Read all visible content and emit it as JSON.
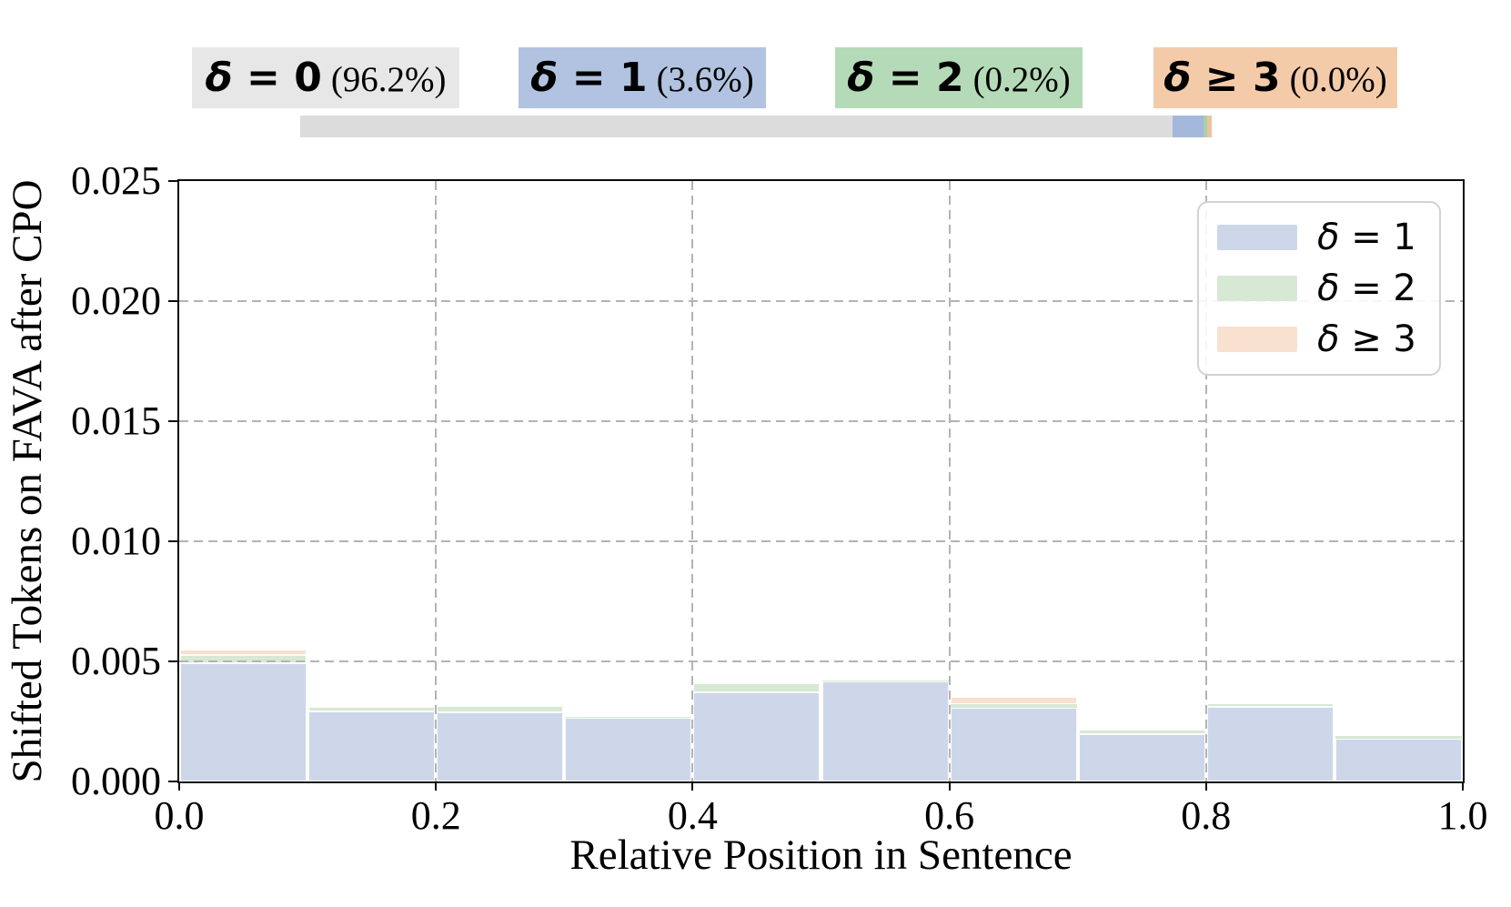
{
  "header": {
    "categories": [
      {
        "label_math": "δ = 0",
        "label_pct": "(96.2%)",
        "bg": "#e7e7e7"
      },
      {
        "label_math": "δ = 1",
        "label_pct": "(3.6%)",
        "bg": "#b2c3e1"
      },
      {
        "label_math": "δ = 2",
        "label_pct": "(0.2%)",
        "bg": "#b5dab7"
      },
      {
        "label_math": "δ ≥ 3",
        "label_pct": "(0.0%)",
        "bg": "#f4cba9"
      }
    ],
    "share_bar": {
      "segments": [
        {
          "name": "delta-0-share",
          "width_pct": 95.7,
          "color": "#dcdcdc"
        },
        {
          "name": "delta-1-share",
          "width_pct": 3.4,
          "color": "#a3b8db"
        },
        {
          "name": "delta-2-share",
          "width_pct": 0.4,
          "color": "#a9cfad"
        },
        {
          "name": "delta-3-share",
          "width_pct": 0.5,
          "color": "#ecc39e"
        }
      ]
    }
  },
  "chart_data": {
    "type": "bar",
    "stacked": true,
    "title": "",
    "xlabel": "Relative Position in Sentence",
    "ylabel": "Shifted Tokens on FAVA after CPO",
    "xlim": [
      0.0,
      1.0
    ],
    "ylim": [
      0.0,
      0.025
    ],
    "xticks": {
      "values": [
        0.0,
        0.2,
        0.4,
        0.6,
        0.8,
        1.0
      ],
      "labels": [
        "0.0",
        "0.2",
        "0.4",
        "0.6",
        "0.8",
        "1.0"
      ]
    },
    "yticks": {
      "values": [
        0.0,
        0.005,
        0.01,
        0.015,
        0.02,
        0.025
      ],
      "labels": [
        "0.000",
        "0.005",
        "0.010",
        "0.015",
        "0.020",
        "0.025"
      ]
    },
    "grid": {
      "show": true,
      "style": "dashed",
      "color": "#b3b3b3",
      "above_bars": true
    },
    "delta_shares": {
      "labels": [
        "δ = 0",
        "δ = 1",
        "δ = 2",
        "δ ≥ 3"
      ],
      "percents": [
        96.2,
        3.6,
        0.2,
        0.0
      ]
    },
    "bin_edges": [
      0.0,
      0.1,
      0.2,
      0.3,
      0.4,
      0.5,
      0.6,
      0.7,
      0.8,
      0.9,
      1.0
    ],
    "series": [
      {
        "name": "δ = 1",
        "color": "#cdd7e9",
        "values": [
          0.00492,
          0.0029,
          0.00288,
          0.00265,
          0.00371,
          0.00417,
          0.00307,
          0.00197,
          0.0031,
          0.00178
        ]
      },
      {
        "name": "δ = 2",
        "color": "#d7e8d5",
        "values": [
          0.00034,
          0.0002,
          0.00027,
          5e-05,
          0.00038,
          5e-05,
          0.00015,
          0.00019,
          0.00016,
          0.00012
        ]
      },
      {
        "name": "δ ≥ 3",
        "color": "#f8e1ce",
        "values": [
          0.00023,
          0,
          0,
          0,
          0,
          0,
          0.0003,
          0,
          0,
          0
        ]
      }
    ],
    "legend": {
      "position": "upper right",
      "entries": [
        {
          "label": "δ = 1",
          "color": "#cdd7e9"
        },
        {
          "label": "δ = 2",
          "color": "#d7e8d5"
        },
        {
          "label": "δ ≥ 3",
          "color": "#f8e1ce"
        }
      ]
    }
  }
}
